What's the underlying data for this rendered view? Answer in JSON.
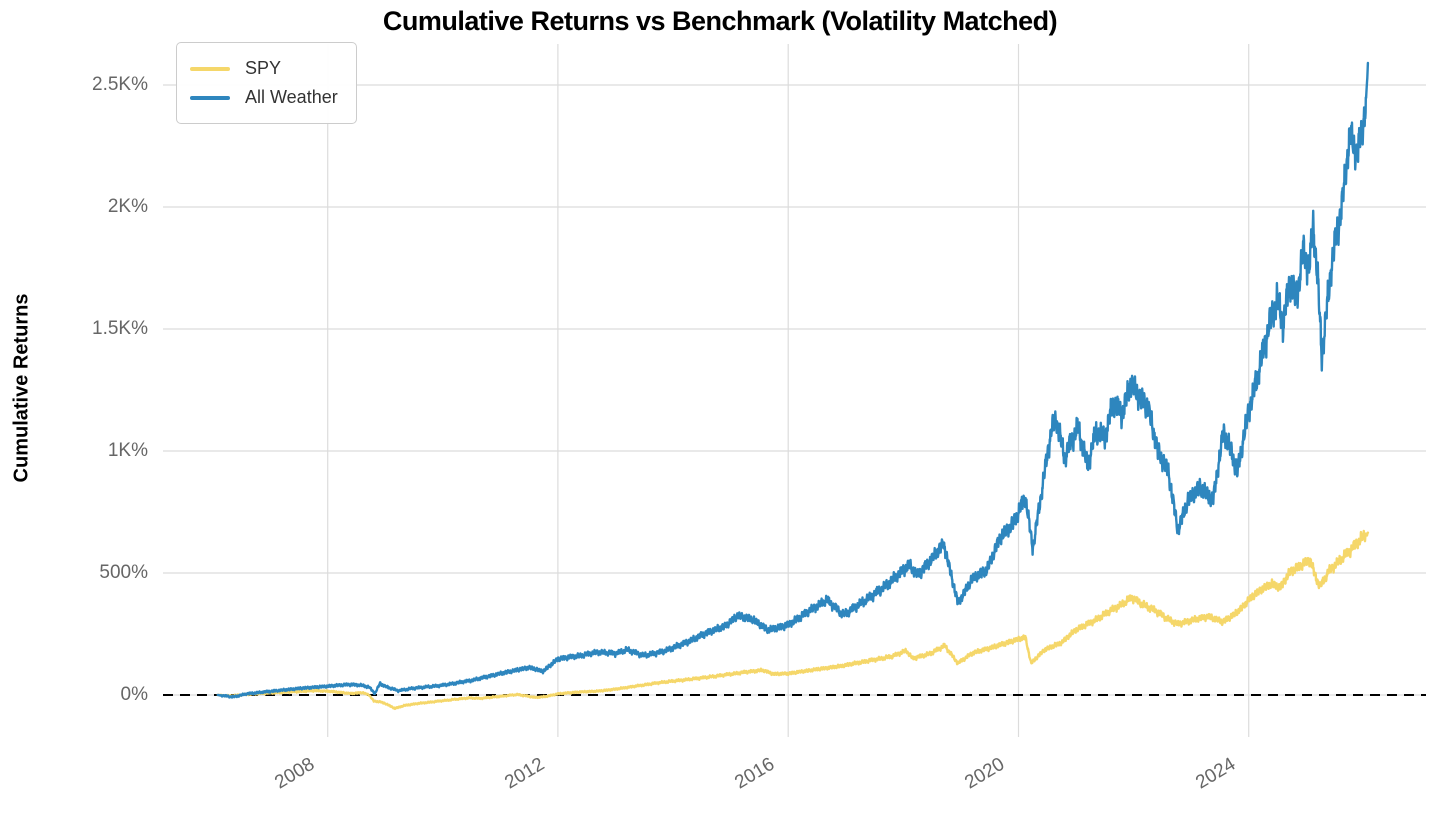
{
  "title": "Cumulative Returns vs Benchmark (Volatility Matched)",
  "y_axis": {
    "label": "Cumulative Returns",
    "ticks": [
      "2.5K%",
      "2K%",
      "1.5K%",
      "1K%",
      "500%",
      "0%"
    ],
    "tick_values": [
      2500,
      2000,
      1500,
      1000,
      500,
      0
    ]
  },
  "x_axis": {
    "ticks": [
      "2008",
      "2012",
      "2016",
      "2020",
      "2024"
    ],
    "tick_values": [
      2008,
      2012,
      2016,
      2020,
      2024
    ]
  },
  "legend": {
    "position": "upper left",
    "items": [
      {
        "label": "SPY",
        "color": "#F5D76A"
      },
      {
        "label": "All Weather",
        "color": "#2E86BE"
      }
    ]
  },
  "colors": {
    "spy_line": "#F5D76A",
    "all_weather_line": "#2E86BE",
    "grid": "#dcdcdc",
    "tick_text": "#666666",
    "zero_line": "#000000",
    "title_text": "#000000",
    "background": "#ffffff"
  },
  "chart_data": {
    "type": "line",
    "title": "Cumulative Returns vs Benchmark (Volatility Matched)",
    "xlabel": "",
    "ylabel": "Cumulative Returns",
    "xlim": [
      2005.1,
      2027.1
    ],
    "ylim": [
      -172,
      2668
    ],
    "grid": true,
    "zero_line": {
      "style": "dashed",
      "color": "#000000",
      "value": 0
    },
    "legend_position": "upper left",
    "x_units": "year",
    "y_units": "percent",
    "series": [
      {
        "name": "SPY",
        "color": "#F5D76A",
        "points": [
          [
            2006.09,
            0
          ],
          [
            2006.3,
            -4
          ],
          [
            2006.6,
            3
          ],
          [
            2007.0,
            8
          ],
          [
            2007.4,
            13
          ],
          [
            2007.8,
            18
          ],
          [
            2008.1,
            14
          ],
          [
            2008.4,
            6
          ],
          [
            2008.6,
            10
          ],
          [
            2008.72,
            0
          ],
          [
            2008.8,
            -25
          ],
          [
            2008.91,
            -28
          ],
          [
            2009.0,
            -35
          ],
          [
            2009.17,
            -55
          ],
          [
            2009.35,
            -42
          ],
          [
            2009.6,
            -34
          ],
          [
            2009.9,
            -26
          ],
          [
            2010.2,
            -18
          ],
          [
            2010.45,
            -12
          ],
          [
            2010.65,
            -14
          ],
          [
            2010.9,
            -8
          ],
          [
            2011.3,
            2
          ],
          [
            2011.6,
            -10
          ],
          [
            2011.8,
            -6
          ],
          [
            2012.0,
            5
          ],
          [
            2012.35,
            12
          ],
          [
            2012.7,
            16
          ],
          [
            2013.0,
            24
          ],
          [
            2013.4,
            38
          ],
          [
            2013.8,
            52
          ],
          [
            2014.2,
            62
          ],
          [
            2014.7,
            76
          ],
          [
            2015.2,
            92
          ],
          [
            2015.55,
            102
          ],
          [
            2015.75,
            86
          ],
          [
            2016.0,
            88
          ],
          [
            2016.4,
            102
          ],
          [
            2016.9,
            118
          ],
          [
            2017.3,
            136
          ],
          [
            2017.8,
            158
          ],
          [
            2018.05,
            182
          ],
          [
            2018.16,
            150
          ],
          [
            2018.45,
            168
          ],
          [
            2018.72,
            202
          ],
          [
            2018.95,
            130
          ],
          [
            2019.2,
            172
          ],
          [
            2019.5,
            192
          ],
          [
            2019.85,
            218
          ],
          [
            2020.12,
            237
          ],
          [
            2020.22,
            130
          ],
          [
            2020.45,
            185
          ],
          [
            2020.75,
            215
          ],
          [
            2021.0,
            268
          ],
          [
            2021.3,
            302
          ],
          [
            2021.6,
            346
          ],
          [
            2021.8,
            372
          ],
          [
            2021.97,
            400
          ],
          [
            2022.15,
            372
          ],
          [
            2022.35,
            350
          ],
          [
            2022.55,
            318
          ],
          [
            2022.77,
            290
          ],
          [
            2023.0,
            306
          ],
          [
            2023.3,
            322
          ],
          [
            2023.55,
            300
          ],
          [
            2023.75,
            330
          ],
          [
            2023.9,
            362
          ],
          [
            2024.0,
            390
          ],
          [
            2024.2,
            430
          ],
          [
            2024.4,
            456
          ],
          [
            2024.55,
            440
          ],
          [
            2024.72,
            505
          ],
          [
            2024.9,
            530
          ],
          [
            2025.07,
            553
          ],
          [
            2025.15,
            492
          ],
          [
            2025.24,
            444
          ],
          [
            2025.4,
            510
          ],
          [
            2025.6,
            556
          ],
          [
            2025.8,
            602
          ],
          [
            2025.95,
            640
          ],
          [
            2026.07,
            665
          ]
        ]
      },
      {
        "name": "All Weather",
        "color": "#2E86BE",
        "points": [
          [
            2006.09,
            0
          ],
          [
            2006.35,
            -8
          ],
          [
            2006.6,
            5
          ],
          [
            2007.0,
            15
          ],
          [
            2007.5,
            27
          ],
          [
            2008.0,
            36
          ],
          [
            2008.35,
            43
          ],
          [
            2008.6,
            40
          ],
          [
            2008.72,
            32
          ],
          [
            2008.82,
            6
          ],
          [
            2008.91,
            48
          ],
          [
            2009.0,
            35
          ],
          [
            2009.22,
            18
          ],
          [
            2009.5,
            28
          ],
          [
            2010.0,
            40
          ],
          [
            2010.5,
            60
          ],
          [
            2011.0,
            88
          ],
          [
            2011.5,
            113
          ],
          [
            2011.74,
            97
          ],
          [
            2012.0,
            148
          ],
          [
            2012.4,
            162
          ],
          [
            2012.7,
            176
          ],
          [
            2013.0,
            170
          ],
          [
            2013.2,
            186
          ],
          [
            2013.48,
            162
          ],
          [
            2013.8,
            176
          ],
          [
            2014.2,
            212
          ],
          [
            2014.6,
            256
          ],
          [
            2014.9,
            282
          ],
          [
            2015.13,
            326
          ],
          [
            2015.4,
            308
          ],
          [
            2015.65,
            266
          ],
          [
            2016.0,
            287
          ],
          [
            2016.35,
            342
          ],
          [
            2016.67,
            390
          ],
          [
            2016.96,
            328
          ],
          [
            2017.3,
            382
          ],
          [
            2017.6,
            430
          ],
          [
            2017.95,
            500
          ],
          [
            2018.1,
            535
          ],
          [
            2018.25,
            490
          ],
          [
            2018.45,
            545
          ],
          [
            2018.7,
            620
          ],
          [
            2018.95,
            375
          ],
          [
            2019.2,
            478
          ],
          [
            2019.45,
            512
          ],
          [
            2019.68,
            645
          ],
          [
            2019.9,
            700
          ],
          [
            2020.12,
            810
          ],
          [
            2020.25,
            600
          ],
          [
            2020.45,
            905
          ],
          [
            2020.58,
            1098
          ],
          [
            2020.66,
            1128
          ],
          [
            2020.8,
            975
          ],
          [
            2021.03,
            1098
          ],
          [
            2021.2,
            942
          ],
          [
            2021.35,
            1080
          ],
          [
            2021.5,
            1058
          ],
          [
            2021.65,
            1198
          ],
          [
            2021.8,
            1150
          ],
          [
            2021.95,
            1278
          ],
          [
            2022.1,
            1222
          ],
          [
            2022.25,
            1180
          ],
          [
            2022.42,
            1000
          ],
          [
            2022.6,
            918
          ],
          [
            2022.77,
            676
          ],
          [
            2022.95,
            800
          ],
          [
            2023.15,
            852
          ],
          [
            2023.38,
            798
          ],
          [
            2023.56,
            1078
          ],
          [
            2023.7,
            1000
          ],
          [
            2023.8,
            912
          ],
          [
            2024.0,
            1168
          ],
          [
            2024.15,
            1302
          ],
          [
            2024.37,
            1530
          ],
          [
            2024.5,
            1622
          ],
          [
            2024.6,
            1518
          ],
          [
            2024.72,
            1702
          ],
          [
            2024.82,
            1612
          ],
          [
            2024.95,
            1822
          ],
          [
            2025.05,
            1742
          ],
          [
            2025.12,
            1930
          ],
          [
            2025.2,
            1702
          ],
          [
            2025.27,
            1392
          ],
          [
            2025.45,
            1782
          ],
          [
            2025.62,
            2008
          ],
          [
            2025.76,
            2300
          ],
          [
            2025.88,
            2212
          ],
          [
            2025.98,
            2330
          ],
          [
            2026.04,
            2420
          ],
          [
            2026.07,
            2590
          ]
        ]
      }
    ]
  }
}
